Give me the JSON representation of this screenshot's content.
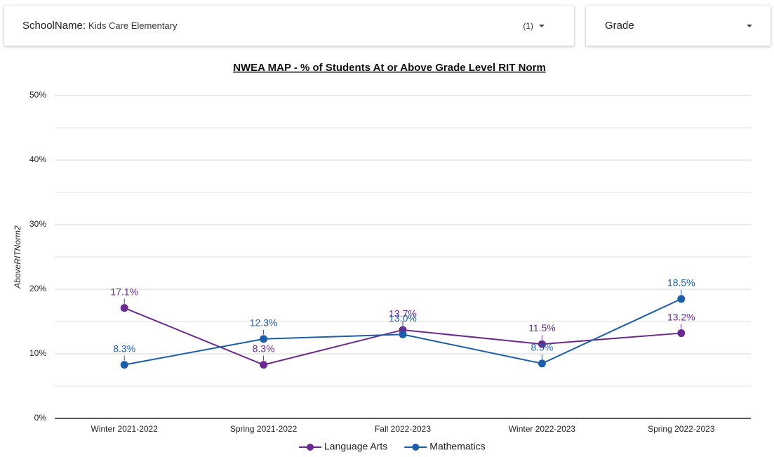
{
  "filters": [
    {
      "name": "SchoolName:",
      "value": "Kids Care Elementary",
      "count": "(1)"
    },
    {
      "name": "Grade"
    }
  ],
  "chart_data": {
    "type": "line",
    "title": "NWEA MAP - % of Students At or Above Grade Level RIT Norm",
    "y_label": "AboveRITNorm2",
    "categories": [
      "Winter 2021-2022",
      "Spring 2021-2022",
      "Fall 2022-2023",
      "Winter 2022-2023",
      "Spring 2022-2023"
    ],
    "series": [
      {
        "name": "Language Arts",
        "color": "#6a2a8e",
        "values": [
          17.1,
          8.3,
          13.7,
          11.5,
          13.2
        ],
        "value_labels": [
          "17.1%",
          "8.3%",
          "13.7%",
          "11.5%",
          "13.2%"
        ]
      },
      {
        "name": "Mathematics",
        "color": "#1c5ea8",
        "values": [
          8.3,
          12.3,
          13.0,
          8.5,
          18.5
        ],
        "value_labels": [
          "8.3%",
          "12.3%",
          "13.0%",
          "8.5%",
          "18.5%"
        ]
      }
    ],
    "ylim": [
      0,
      50
    ],
    "yticks": [
      {
        "value": 0,
        "label": "0%"
      },
      {
        "value": 10,
        "label": "10%"
      },
      {
        "value": 20,
        "label": "20%"
      },
      {
        "value": 30,
        "label": "30%"
      },
      {
        "value": 40,
        "label": "40%"
      },
      {
        "value": 50,
        "label": "50%"
      }
    ],
    "minor_yticks": [
      5,
      15,
      25,
      35,
      45
    ],
    "grid": true,
    "legend": "bottom"
  }
}
